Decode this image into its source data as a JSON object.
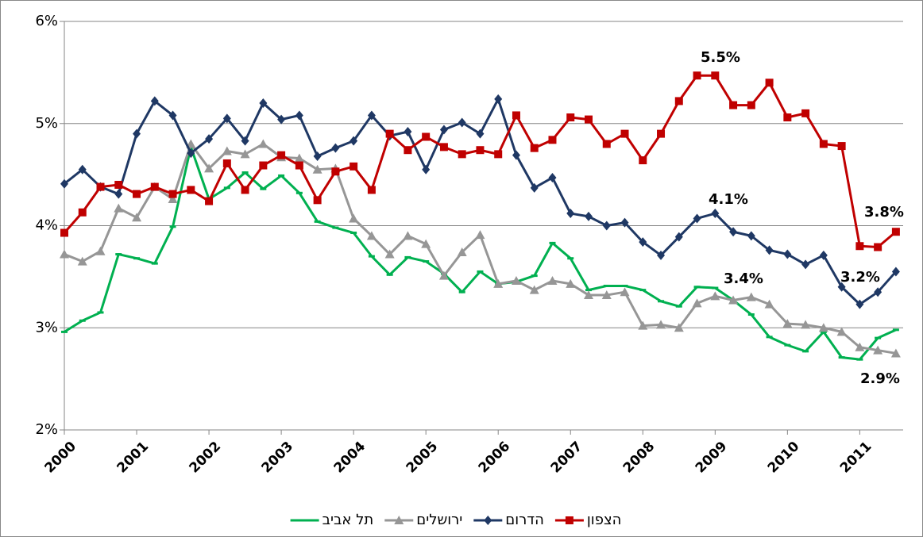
{
  "chart_data": {
    "type": "line",
    "x": [
      2000,
      2000.25,
      2000.5,
      2000.75,
      2001,
      2001.25,
      2001.5,
      2001.75,
      2002,
      2002.25,
      2002.5,
      2002.75,
      2003,
      2003.25,
      2003.5,
      2003.75,
      2004,
      2004.25,
      2004.5,
      2004.75,
      2005,
      2005.25,
      2005.5,
      2005.75,
      2006,
      2006.25,
      2006.5,
      2006.75,
      2007,
      2007.25,
      2007.5,
      2007.75,
      2008,
      2008.25,
      2008.5,
      2008.75,
      2009,
      2009.25,
      2009.5,
      2009.75,
      2010,
      2010.25,
      2010.5,
      2010.75,
      2011,
      2011.25,
      2011.5
    ],
    "series": [
      {
        "name": "תל אביב",
        "color": "#00b050",
        "marker": "dash",
        "values": [
          2.96,
          3.07,
          3.15,
          3.72,
          3.68,
          3.63,
          3.99,
          4.77,
          4.26,
          4.37,
          4.52,
          4.36,
          4.49,
          4.32,
          4.04,
          3.98,
          3.93,
          3.7,
          3.52,
          3.69,
          3.65,
          3.53,
          3.35,
          3.55,
          3.43,
          3.45,
          3.51,
          3.83,
          3.68,
          3.37,
          3.41,
          3.41,
          3.37,
          3.26,
          3.21,
          3.4,
          3.39,
          3.27,
          3.13,
          2.91,
          2.83,
          2.77,
          2.96,
          2.71,
          2.69,
          2.9,
          2.98
        ]
      },
      {
        "name": "ירושלים",
        "color": "#969696",
        "marker": "triangle",
        "values": [
          3.72,
          3.65,
          3.75,
          4.17,
          4.08,
          4.38,
          4.26,
          4.8,
          4.56,
          4.73,
          4.7,
          4.8,
          4.67,
          4.66,
          4.55,
          4.56,
          4.07,
          3.9,
          3.72,
          3.9,
          3.82,
          3.51,
          3.74,
          3.91,
          3.43,
          3.46,
          3.37,
          3.46,
          3.43,
          3.32,
          3.32,
          3.35,
          3.02,
          3.03,
          3.0,
          3.24,
          3.31,
          3.27,
          3.3,
          3.23,
          3.04,
          3.03,
          3.0,
          2.96,
          2.81,
          2.78,
          2.75
        ]
      },
      {
        "name": "הדרום",
        "color": "#1f3864",
        "marker": "diamond",
        "values": [
          4.41,
          4.55,
          4.38,
          4.31,
          4.9,
          5.22,
          5.08,
          4.71,
          4.85,
          5.05,
          4.83,
          5.2,
          5.04,
          5.08,
          4.68,
          4.76,
          4.83,
          5.08,
          4.88,
          4.92,
          4.55,
          4.94,
          5.01,
          4.9,
          5.24,
          4.69,
          4.37,
          4.47,
          4.12,
          4.09,
          4.0,
          4.03,
          3.84,
          3.71,
          3.89,
          4.07,
          4.12,
          3.94,
          3.9,
          3.76,
          3.72,
          3.62,
          3.71,
          3.4,
          3.23,
          3.35,
          3.55
        ]
      },
      {
        "name": "הצפון",
        "color": "#c00000",
        "marker": "square",
        "values": [
          3.93,
          4.13,
          4.38,
          4.4,
          4.31,
          4.38,
          4.31,
          4.35,
          4.24,
          4.61,
          4.35,
          4.59,
          4.69,
          4.59,
          4.25,
          4.53,
          4.58,
          4.35,
          4.9,
          4.74,
          4.87,
          4.77,
          4.7,
          4.74,
          4.7,
          5.08,
          4.76,
          4.84,
          5.06,
          5.04,
          4.8,
          4.9,
          4.64,
          4.9,
          5.22,
          5.47,
          5.47,
          5.18,
          5.18,
          5.4,
          5.06,
          5.1,
          4.8,
          4.78,
          3.8,
          3.79,
          3.94
        ]
      }
    ],
    "xlim": [
      2000,
      2011.6
    ],
    "xticks": [
      2000,
      2001,
      2002,
      2003,
      2004,
      2005,
      2006,
      2007,
      2008,
      2009,
      2010,
      2011
    ],
    "ylim": [
      2,
      6
    ],
    "yticks": [
      {
        "value": 2,
        "label": "2%"
      },
      {
        "value": 3,
        "label": "3%"
      },
      {
        "value": 4,
        "label": "4%"
      },
      {
        "value": 5,
        "label": "5%"
      },
      {
        "value": 6,
        "label": "6%"
      }
    ],
    "grid": true,
    "legend": "bottom",
    "annotations": [
      "5.5%",
      "4.1%",
      "3.4%",
      "3.8%",
      "3.2%",
      "2.9%"
    ]
  }
}
